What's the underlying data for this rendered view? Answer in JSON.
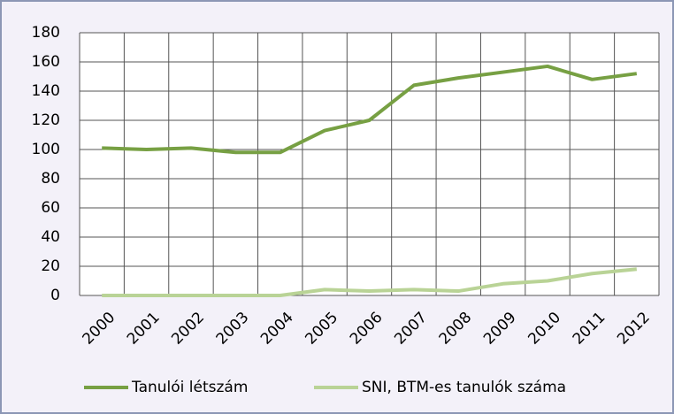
{
  "chart_data": {
    "type": "line",
    "categories": [
      "2000",
      "2001",
      "2002",
      "2003",
      "2004",
      "2005",
      "2006",
      "2007",
      "2008",
      "2009",
      "2010",
      "2011",
      "2012"
    ],
    "series": [
      {
        "name": "Tanulói létszám",
        "color": "#77a043",
        "values": [
          101,
          100,
          101,
          98,
          98,
          113,
          120,
          144,
          149,
          153,
          157,
          148,
          152
        ]
      },
      {
        "name": "SNI, BTM-es tanulók száma",
        "color": "#b9d396",
        "values": [
          0,
          0,
          0,
          0,
          0,
          4,
          3,
          4,
          3,
          8,
          10,
          15,
          18
        ]
      }
    ],
    "ylim": [
      0,
      180
    ],
    "yticks": [
      0,
      20,
      40,
      60,
      80,
      100,
      120,
      140,
      160,
      180
    ],
    "grid": true,
    "legend": "bottom"
  }
}
